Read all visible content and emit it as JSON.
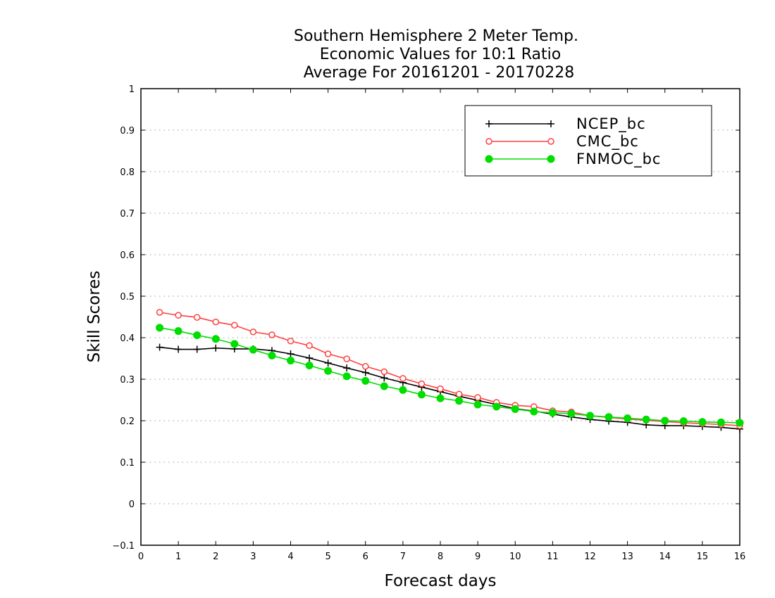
{
  "chart_data": {
    "type": "line",
    "title": [
      "Southern Hemisphere 2 Meter Temp.",
      "Economic Values for 10:1 Ratio",
      "Average For 20161201 - 20170228"
    ],
    "xlabel": "Forecast days",
    "ylabel": "Skill Scores",
    "xlim": [
      0,
      16
    ],
    "ylim": [
      -0.1,
      1
    ],
    "xticks": [
      0,
      1,
      2,
      3,
      4,
      5,
      6,
      7,
      8,
      9,
      10,
      11,
      12,
      13,
      14,
      15,
      16
    ],
    "yticks": [
      -0.1,
      0,
      0.1,
      0.2,
      0.3,
      0.4,
      0.5,
      0.6,
      0.7,
      0.8,
      0.9,
      1
    ],
    "ytick_labels": [
      "−0.1",
      "0",
      "0.1",
      "0.2",
      "0.3",
      "0.4",
      "0.5",
      "0.6",
      "0.7",
      "0.8",
      "0.9",
      "1"
    ],
    "grid": true,
    "legend_position": "top-right",
    "x": [
      0.5,
      1,
      1.5,
      2,
      2.5,
      3,
      3.5,
      4,
      4.5,
      5,
      5.5,
      6,
      6.5,
      7,
      7.5,
      8,
      8.5,
      9,
      9.5,
      10,
      10.5,
      11,
      11.5,
      12,
      12.5,
      13,
      13.5,
      14,
      14.5,
      15,
      15.5,
      16
    ],
    "series": [
      {
        "name": "NCEP_bc",
        "color": "#000000",
        "marker": "plus",
        "values": [
          0.377,
          0.372,
          0.372,
          0.375,
          0.373,
          0.373,
          0.369,
          0.361,
          0.351,
          0.339,
          0.327,
          0.316,
          0.303,
          0.292,
          0.281,
          0.27,
          0.259,
          0.249,
          0.239,
          0.229,
          0.223,
          0.216,
          0.209,
          0.203,
          0.199,
          0.196,
          0.19,
          0.188,
          0.188,
          0.186,
          0.184,
          0.18
        ]
      },
      {
        "name": "CMC_bc",
        "color": "#ff4040",
        "marker": "open-circle",
        "values": [
          0.461,
          0.454,
          0.449,
          0.438,
          0.43,
          0.414,
          0.407,
          0.392,
          0.381,
          0.361,
          0.349,
          0.331,
          0.318,
          0.302,
          0.289,
          0.277,
          0.264,
          0.256,
          0.244,
          0.237,
          0.234,
          0.224,
          0.221,
          0.212,
          0.208,
          0.204,
          0.201,
          0.198,
          0.195,
          0.193,
          0.191,
          0.188
        ]
      },
      {
        "name": "FNMOC_bc",
        "color": "#00dd00",
        "marker": "filled-circle",
        "values": [
          0.424,
          0.416,
          0.406,
          0.397,
          0.385,
          0.371,
          0.357,
          0.345,
          0.333,
          0.32,
          0.307,
          0.296,
          0.283,
          0.274,
          0.263,
          0.254,
          0.248,
          0.239,
          0.234,
          0.228,
          0.222,
          0.219,
          0.217,
          0.212,
          0.209,
          0.206,
          0.203,
          0.2,
          0.199,
          0.197,
          0.196,
          0.195
        ]
      }
    ]
  }
}
